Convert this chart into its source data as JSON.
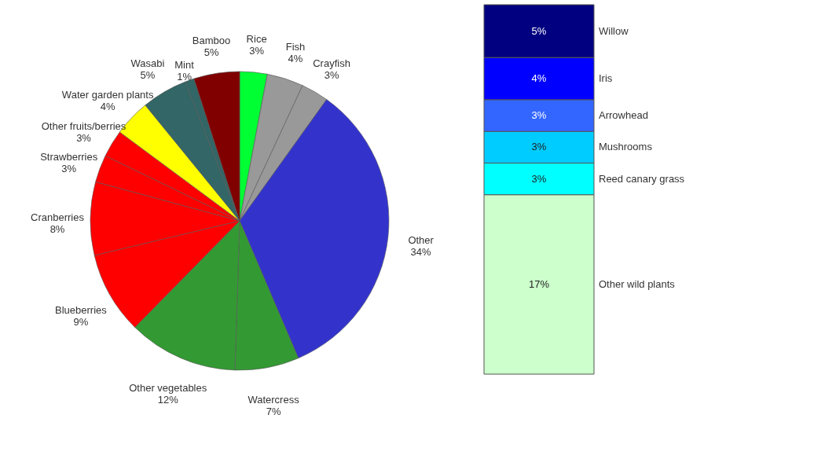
{
  "chart_data": [
    {
      "type": "pie",
      "categories": [
        "Rice",
        "Fish",
        "Crayfish",
        "Other",
        "Watercress",
        "Other vegetables",
        "Blueberries",
        "Cranberries",
        "Strawberries",
        "Other fruits/berries",
        "Water garden plants",
        "Wasabi",
        "Mint",
        "Bamboo"
      ],
      "values": [
        3,
        4,
        3,
        34,
        7,
        12,
        9,
        8,
        3,
        3,
        4,
        5,
        1,
        5
      ],
      "value_labels": [
        "3%",
        "4%",
        "3%",
        "34%",
        "7%",
        "12%",
        "9%",
        "8%",
        "3%",
        "3%",
        "4%",
        "5%",
        "1%",
        "5%"
      ],
      "colors": [
        "#00ff33",
        "#999999",
        "#999999",
        "#3333cc",
        "#339933",
        "#339933",
        "#ff0000",
        "#ff0000",
        "#ff0000",
        "#ff0000",
        "#ffff00",
        "#336666",
        "#336666",
        "#800000"
      ],
      "legend": false
    },
    {
      "type": "bar",
      "stacked": true,
      "categories": [
        null
      ],
      "legend": false,
      "series": [
        {
          "name": "Other wild plants",
          "color": "#ccffcc",
          "values": [
            17
          ],
          "value_labels": [
            "17%"
          ]
        },
        {
          "name": "Reed canary grass",
          "color": "#00ffff",
          "values": [
            3
          ],
          "value_labels": [
            "3%"
          ]
        },
        {
          "name": "Mushrooms",
          "color": "#00ccff",
          "values": [
            3
          ],
          "value_labels": [
            "3%"
          ]
        },
        {
          "name": "Arrowhead",
          "color": "#3366ff",
          "values": [
            3
          ],
          "value_labels": [
            "3%"
          ]
        },
        {
          "name": "Iris",
          "color": "#0000ff",
          "values": [
            4
          ],
          "value_labels": [
            "4%"
          ]
        },
        {
          "name": "Willow",
          "color": "#000080",
          "values": [
            5
          ],
          "value_labels": [
            "5%"
          ]
        }
      ]
    }
  ]
}
